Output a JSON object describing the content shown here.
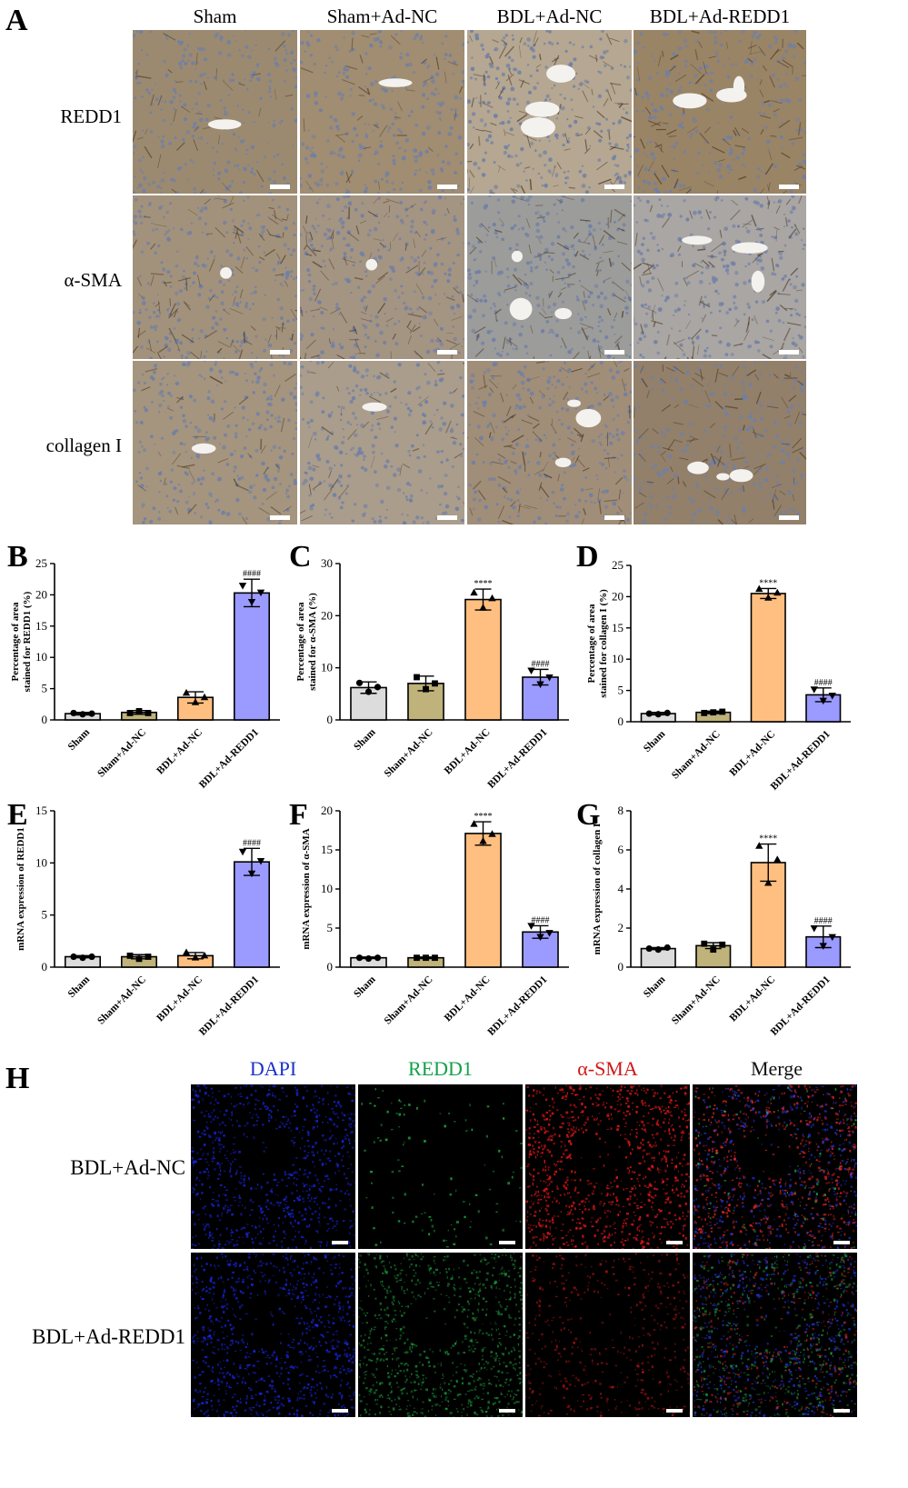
{
  "figure": {
    "panel_a": {
      "letter": "A",
      "columns": [
        "Sham",
        "Sham+Ad-NC",
        "BDL+Ad-NC",
        "BDL+Ad-REDD1"
      ],
      "rows": [
        "REDD1",
        "α-SMA",
        "collagen I"
      ]
    },
    "panel_h": {
      "letter": "H",
      "columns": [
        {
          "label": "DAPI",
          "color": "#1a32c8"
        },
        {
          "label": "REDD1",
          "color": "#12a04a"
        },
        {
          "label": "α-SMA",
          "color": "#d01818"
        },
        {
          "label": "Merge",
          "color": "#111111"
        }
      ],
      "rows": [
        "BDL+Ad-NC",
        "BDL+Ad-REDD1"
      ]
    },
    "colors": {
      "sham": "#dcdcdc",
      "sham_ad_nc": "#bfb27a",
      "bdl_ad_nc": "#ffbf80",
      "bdl_ad_redd1": "#9a9aff"
    }
  },
  "chart_data": [
    {
      "panel": "B",
      "type": "bar",
      "categories": [
        "Sham",
        "Sham+Ad-NC",
        "BDL+Ad-NC",
        "BDL+Ad-REDD1"
      ],
      "values": [
        1.0,
        1.2,
        3.6,
        20.3
      ],
      "errors": [
        0.2,
        0.3,
        0.9,
        2.2
      ],
      "points": [
        [
          1.1,
          0.9,
          1.0
        ],
        [
          1.1,
          1.4,
          1.1
        ],
        [
          4.3,
          2.8,
          3.6
        ],
        [
          21.5,
          18.9,
          20.4
        ]
      ],
      "annotations": [
        "",
        "",
        "",
        "####"
      ],
      "ylabel": "Percentage of area stained for REDD1 (%)",
      "ylim": [
        0,
        25
      ],
      "yticks": [
        0,
        5,
        10,
        15,
        20,
        25
      ]
    },
    {
      "panel": "C",
      "type": "bar",
      "categories": [
        "Sham",
        "Sham+Ad-NC",
        "BDL+Ad-NC",
        "BDL+Ad-REDD1"
      ],
      "values": [
        6.2,
        7.0,
        23.1,
        8.2
      ],
      "errors": [
        1.1,
        1.4,
        2.0,
        1.5
      ],
      "points": [
        [
          7.1,
          5.4,
          6.3
        ],
        [
          8.2,
          5.9,
          7.0
        ],
        [
          24.4,
          21.5,
          23.3
        ],
        [
          9.5,
          6.9,
          8.2
        ]
      ],
      "annotations": [
        "",
        "",
        "****",
        "####"
      ],
      "ylabel": "Percentage of area stained for α-SMA (%)",
      "ylim": [
        0,
        30
      ],
      "yticks": [
        0,
        10,
        20,
        30
      ]
    },
    {
      "panel": "D",
      "type": "bar",
      "categories": [
        "Sham",
        "Sham+Ad-NC",
        "BDL+Ad-NC",
        "BDL+Ad-REDD1"
      ],
      "values": [
        1.3,
        1.5,
        20.5,
        4.3
      ],
      "errors": [
        0.2,
        0.2,
        0.8,
        1.1
      ],
      "points": [
        [
          1.3,
          1.2,
          1.4
        ],
        [
          1.4,
          1.5,
          1.6
        ],
        [
          21.2,
          19.8,
          20.6
        ],
        [
          5.2,
          3.4,
          4.2
        ]
      ],
      "annotations": [
        "",
        "",
        "****",
        "####"
      ],
      "ylabel": "Percentage of area stained for collagen I (%)",
      "ylim": [
        0,
        25
      ],
      "yticks": [
        0,
        5,
        10,
        15,
        20,
        25
      ]
    },
    {
      "panel": "E",
      "type": "bar",
      "categories": [
        "Sham",
        "Sham+Ad-NC",
        "BDL+Ad-NC",
        "BDL+Ad-REDD1"
      ],
      "values": [
        1.0,
        1.0,
        1.1,
        10.1
      ],
      "errors": [
        0.1,
        0.2,
        0.3,
        1.3
      ],
      "points": [
        [
          1.0,
          0.9,
          1.0
        ],
        [
          1.1,
          0.8,
          1.0
        ],
        [
          1.4,
          0.9,
          1.1
        ],
        [
          11.1,
          9.0,
          10.2
        ]
      ],
      "annotations": [
        "",
        "",
        "",
        "####"
      ],
      "ylabel": "mRNA expression of REDD1",
      "ylim": [
        0,
        15
      ],
      "yticks": [
        0,
        5,
        10,
        15
      ]
    },
    {
      "panel": "F",
      "type": "bar",
      "categories": [
        "Sham",
        "Sham+Ad-NC",
        "BDL+Ad-NC",
        "BDL+Ad-REDD1"
      ],
      "values": [
        1.2,
        1.2,
        17.1,
        4.5
      ],
      "errors": [
        0.1,
        0.1,
        1.5,
        0.8
      ],
      "points": [
        [
          1.2,
          1.1,
          1.2
        ],
        [
          1.2,
          1.2,
          1.2
        ],
        [
          18.3,
          16.1,
          17.0
        ],
        [
          5.3,
          3.9,
          4.4
        ]
      ],
      "annotations": [
        "",
        "",
        "****",
        "####"
      ],
      "ylabel": "mRNA expression of α-SMA",
      "ylim": [
        0,
        20
      ],
      "yticks": [
        0,
        5,
        10,
        15,
        20
      ]
    },
    {
      "panel": "G",
      "type": "bar",
      "categories": [
        "Sham",
        "Sham+Ad-NC",
        "BDL+Ad-NC",
        "BDL+Ad-REDD1"
      ],
      "values": [
        0.95,
        1.1,
        5.35,
        1.55
      ],
      "errors": [
        0.05,
        0.15,
        0.95,
        0.55
      ],
      "points": [
        [
          0.95,
          0.9,
          1.0
        ],
        [
          1.2,
          0.9,
          1.15
        ],
        [
          6.2,
          4.3,
          5.5
        ],
        [
          2.0,
          1.1,
          1.55
        ]
      ],
      "annotations": [
        "",
        "",
        "****",
        "####"
      ],
      "ylabel": "mRNA expression of collagen I",
      "ylim": [
        0,
        8
      ],
      "yticks": [
        0,
        2,
        4,
        6,
        8
      ]
    }
  ]
}
